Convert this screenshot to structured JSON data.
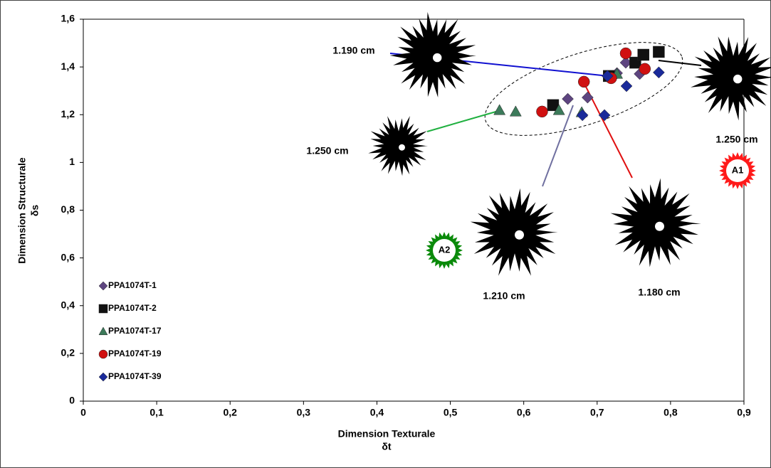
{
  "chart_data": {
    "type": "scatter",
    "xlabel_lines": [
      "Dimension Texturale",
      "δt"
    ],
    "ylabel_lines": [
      "Dimension Structurale",
      "δs"
    ],
    "xlim": [
      0,
      0.9
    ],
    "ylim": [
      0,
      1.6
    ],
    "xticks": [
      0,
      {
        "value": 0.1,
        "label": "0,1"
      },
      {
        "value": 0.2,
        "label": "0,2"
      },
      {
        "value": 0.3,
        "label": "0,3"
      },
      {
        "value": 0.4,
        "label": "0,4"
      },
      {
        "value": 0.5,
        "label": "0,5"
      },
      {
        "value": 0.6,
        "label": "0,6"
      },
      {
        "value": 0.7,
        "label": "0,7"
      },
      {
        "value": 0.8,
        "label": "0,8"
      },
      {
        "value": 0.9,
        "label": "0,9"
      }
    ],
    "yticks": [
      0,
      {
        "value": 0.2,
        "label": "0,2"
      },
      {
        "value": 0.4,
        "label": "0,4"
      },
      {
        "value": 0.6,
        "label": "0,6"
      },
      {
        "value": 0.8,
        "label": "0,8"
      },
      1,
      {
        "value": 1.2,
        "label": "1,2"
      },
      {
        "value": 1.4,
        "label": "1,4"
      },
      {
        "value": 1.6,
        "label": "1,6"
      }
    ],
    "legend": "lower left",
    "series": [
      {
        "name": "PPA1074T-1",
        "color": "#5e4580",
        "marker": "diamond",
        "x": [
          0.66,
          0.687,
          0.727,
          0.739,
          0.758
        ],
        "values": [
          1.266,
          1.272,
          1.374,
          1.418,
          1.371
        ]
      },
      {
        "name": "PPA1074T-2",
        "color": "#111111",
        "marker": "square",
        "x": [
          0.64,
          0.716,
          0.752,
          0.763,
          0.784
        ],
        "values": [
          1.24,
          1.362,
          1.418,
          1.451,
          1.463
        ]
      },
      {
        "name": "PPA1074T-17",
        "color": "#3c7a5a",
        "marker": "triangle",
        "x": [
          0.567,
          0.589,
          0.648,
          0.679,
          0.727
        ],
        "values": [
          1.219,
          1.213,
          1.219,
          1.21,
          1.371
        ]
      },
      {
        "name": "PPA1074T-19",
        "color": "#d01010",
        "marker": "circle",
        "x": [
          0.625,
          0.682,
          0.719,
          0.739,
          0.765
        ],
        "values": [
          1.213,
          1.338,
          1.353,
          1.457,
          1.392
        ]
      },
      {
        "name": "PPA1074T-39",
        "color": "#1a2a9a",
        "marker": "diamond",
        "x": [
          0.68,
          0.71,
          0.714,
          0.74,
          0.784
        ],
        "values": [
          1.198,
          1.198,
          1.362,
          1.32,
          1.377
        ]
      }
    ],
    "annotations": [
      "1.190 cm",
      "1.250 cm",
      "1.250 cm",
      "1.210 cm",
      "1.180 cm",
      "A1",
      "A2"
    ]
  }
}
